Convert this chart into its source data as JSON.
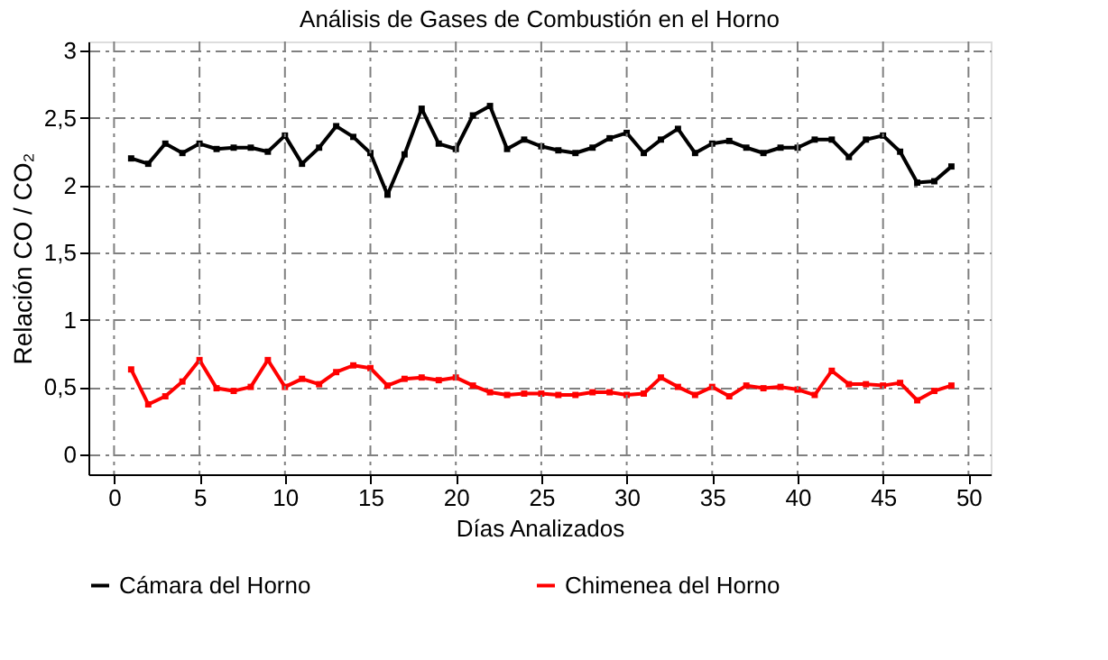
{
  "chart_data": {
    "type": "line",
    "title": "Análisis de Gases de Combustión en el Horno",
    "xlabel": "Días Analizados",
    "ylabel": "Relación CO / CO₂",
    "x": [
      1,
      2,
      3,
      4,
      5,
      6,
      7,
      8,
      9,
      10,
      11,
      12,
      13,
      14,
      15,
      16,
      17,
      18,
      19,
      20,
      21,
      22,
      23,
      24,
      25,
      26,
      27,
      28,
      29,
      30,
      31,
      32,
      33,
      34,
      35,
      36,
      37,
      38,
      39,
      40,
      41,
      42,
      43,
      44,
      45,
      46,
      47,
      48,
      49
    ],
    "series": [
      {
        "name": "Cámara del Horno",
        "color": "#000000",
        "values": [
          2.2,
          2.16,
          2.31,
          2.24,
          2.31,
          2.27,
          2.28,
          2.28,
          2.25,
          2.37,
          2.16,
          2.28,
          2.44,
          2.36,
          2.24,
          1.93,
          2.23,
          2.57,
          2.31,
          2.27,
          2.52,
          2.59,
          2.27,
          2.34,
          2.29,
          2.26,
          2.24,
          2.28,
          2.35,
          2.39,
          2.24,
          2.34,
          2.42,
          2.24,
          2.31,
          2.33,
          2.28,
          2.24,
          2.28,
          2.28,
          2.34,
          2.34,
          2.21,
          2.34,
          2.37,
          2.25,
          2.02,
          2.03,
          2.14
        ]
      },
      {
        "name": "Chimenea del Horno",
        "color": "#ff0000",
        "values": [
          0.63,
          0.37,
          0.43,
          0.54,
          0.7,
          0.49,
          0.47,
          0.5,
          0.7,
          0.5,
          0.56,
          0.52,
          0.61,
          0.66,
          0.64,
          0.51,
          0.56,
          0.57,
          0.55,
          0.57,
          0.51,
          0.46,
          0.44,
          0.45,
          0.45,
          0.44,
          0.44,
          0.46,
          0.46,
          0.44,
          0.45,
          0.57,
          0.5,
          0.44,
          0.5,
          0.43,
          0.51,
          0.49,
          0.5,
          0.48,
          0.44,
          0.62,
          0.52,
          0.52,
          0.51,
          0.53,
          0.4,
          0.47,
          0.51
        ]
      }
    ],
    "xlim": [
      -1.5,
      51.3
    ],
    "xticks": [
      0,
      5,
      10,
      15,
      20,
      25,
      30,
      35,
      40,
      45,
      50
    ],
    "ylim": [
      -0.15,
      3.07
    ],
    "yticks": [
      0,
      {
        "value": 0.5,
        "label": "0,5"
      },
      1,
      {
        "value": 1.5,
        "label": "1,5"
      },
      2,
      {
        "value": 2.5,
        "label": "2,5"
      },
      3
    ],
    "grid": true,
    "legend": "bottom",
    "marker": "square",
    "line_style": "solid"
  }
}
